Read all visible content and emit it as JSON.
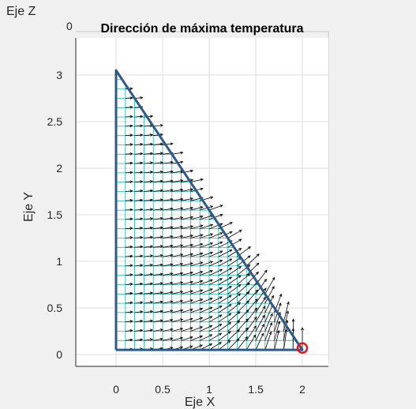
{
  "chart_data": {
    "type": "quiver",
    "title": "Dirección de máxima temperatura",
    "xlabel": "Eje X",
    "ylabel": "Eje Y",
    "zlabel": "Eje Z",
    "z_tick": "0",
    "xlim": [
      -0.45,
      2.3
    ],
    "ylim": [
      -0.12,
      3.35
    ],
    "xticks": [
      "0",
      "0.5",
      "1",
      "1.5",
      "2"
    ],
    "yticks": [
      "0",
      "0.5",
      "1",
      "1.5",
      "2",
      "2.5",
      "3"
    ],
    "grid": true,
    "region_boundary": {
      "x": [
        0,
        2,
        0,
        0
      ],
      "y": [
        0.05,
        0.05,
        3.05,
        0.05
      ]
    },
    "mesh": {
      "step": 0.1,
      "note_visible": "cyan grid inside triangular region"
    },
    "vector_field": {
      "description": "arrows of the temperature gradient; vertical near x=2, tilting right toward upper region",
      "grid_step": 0.1
    },
    "max_point": {
      "x": 2,
      "y": 0.07
    },
    "colors": {
      "boundary": "#2e5a87",
      "mesh": "#1fb5ad",
      "arrows": "#000000",
      "max_marker": "#e8141e",
      "grid": "#dcdcdc"
    }
  }
}
